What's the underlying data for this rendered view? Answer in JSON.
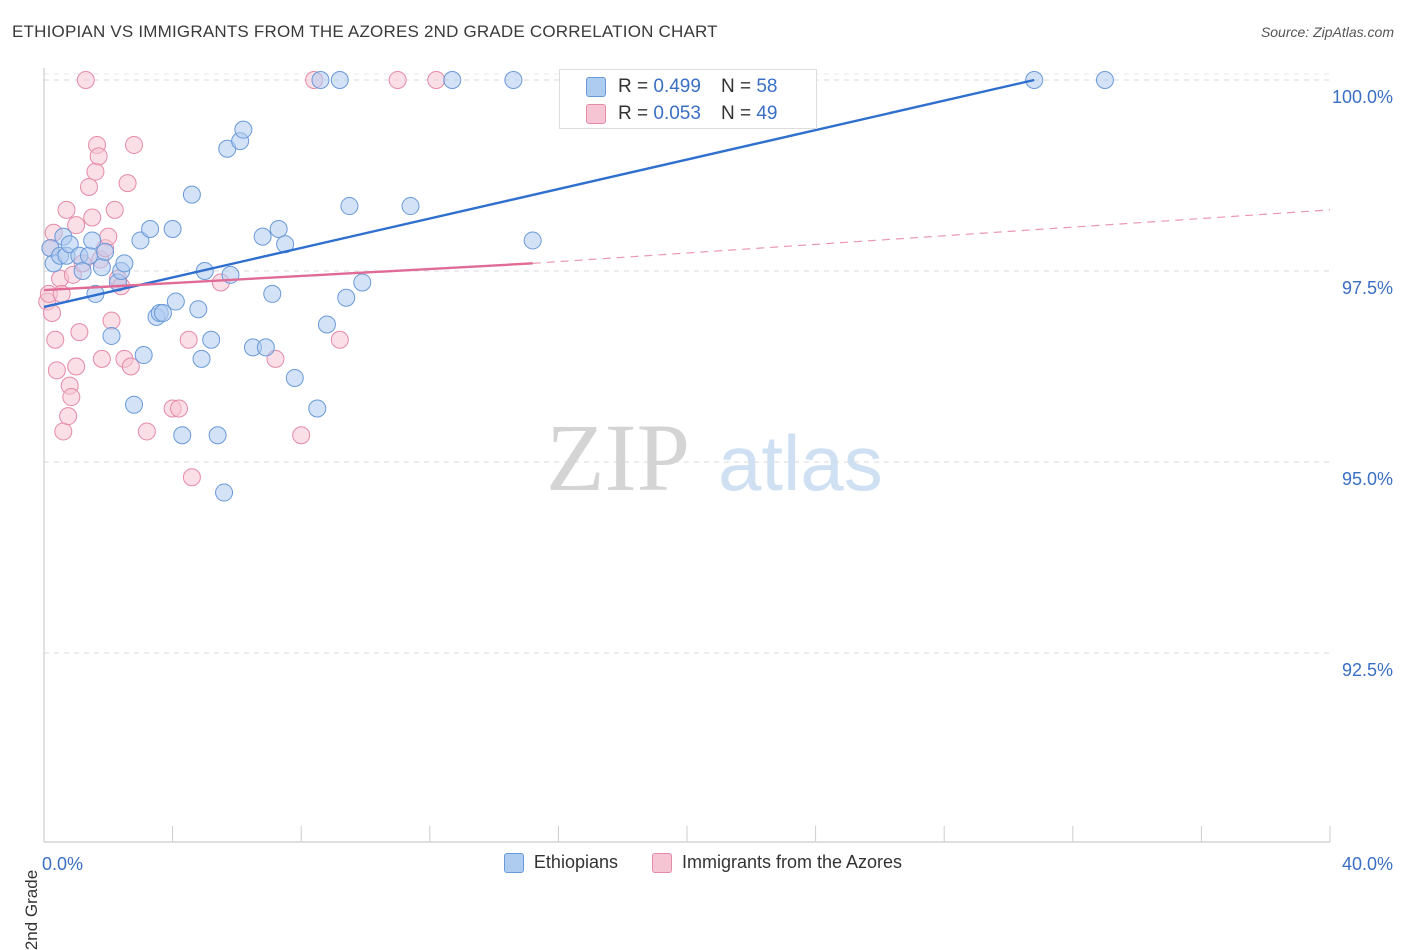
{
  "title": "ETHIOPIAN VS IMMIGRANTS FROM THE AZORES 2ND GRADE CORRELATION CHART",
  "source": "Source: ZipAtlas.com",
  "watermark": {
    "zip": "ZIP",
    "atlas": "atlas"
  },
  "legend": {
    "blue": {
      "r_label": "R =",
      "r_value": "0.499",
      "n_label": "N =",
      "n_value": "58"
    },
    "pink": {
      "r_label": "R =",
      "r_value": "0.053",
      "n_label": "N =",
      "n_value": "49"
    }
  },
  "bottom_legend": {
    "blue": "Ethiopians",
    "pink": "Immigrants from the Azores"
  },
  "colors": {
    "blue_fill": "#aecbf0",
    "blue_stroke": "#6a9ad8",
    "blue_line": "#2f6fce",
    "pink_fill": "#f6c5d4",
    "pink_stroke": "#e58aa9",
    "pink_line": "#e06b96",
    "tick_label": "#3a6fc4",
    "grid": "#d9d9d9"
  },
  "chart_data": {
    "type": "scatter",
    "title": "ETHIOPIAN VS IMMIGRANTS FROM THE AZORES 2ND GRADE CORRELATION CHART",
    "xlabel": "",
    "ylabel": "2nd Grade",
    "xlim": [
      0,
      40
    ],
    "ylim": [
      90.2,
      100.3
    ],
    "x_tick_labels": [
      {
        "value": 0,
        "label": "0.0%"
      },
      {
        "value": 40,
        "label": "40.0%"
      }
    ],
    "y_ticks": [
      {
        "value": 100,
        "label": "100.0%"
      },
      {
        "value": 97.5,
        "label": "97.5%"
      },
      {
        "value": 95,
        "label": "95.0%"
      },
      {
        "value": 92.5,
        "label": "92.5%"
      }
    ],
    "x_minor_ticks": [
      4,
      8,
      12,
      16,
      20,
      24,
      28,
      32,
      36,
      40
    ],
    "series": [
      {
        "name": "Ethiopians",
        "color": "blue",
        "trend": {
          "x": [
            0,
            30.8
          ],
          "y": [
            97.03,
            100.0
          ],
          "style": "solid"
        },
        "points": [
          [
            0.2,
            97.8
          ],
          [
            0.3,
            97.6
          ],
          [
            0.5,
            97.7
          ],
          [
            0.6,
            97.95
          ],
          [
            0.7,
            97.7
          ],
          [
            0.8,
            97.85
          ],
          [
            1.1,
            97.7
          ],
          [
            1.2,
            97.5
          ],
          [
            1.4,
            97.7
          ],
          [
            1.5,
            97.9
          ],
          [
            1.6,
            97.2
          ],
          [
            1.8,
            97.55
          ],
          [
            1.9,
            97.75
          ],
          [
            2.1,
            96.65
          ],
          [
            2.3,
            97.35
          ],
          [
            2.4,
            97.5
          ],
          [
            2.5,
            97.6
          ],
          [
            2.8,
            95.75
          ],
          [
            3.0,
            97.9
          ],
          [
            3.1,
            96.4
          ],
          [
            3.3,
            98.05
          ],
          [
            3.5,
            96.9
          ],
          [
            3.6,
            96.95
          ],
          [
            3.7,
            96.95
          ],
          [
            4.0,
            98.05
          ],
          [
            4.1,
            97.1
          ],
          [
            4.3,
            95.35
          ],
          [
            4.6,
            98.5
          ],
          [
            4.8,
            97.0
          ],
          [
            4.9,
            96.35
          ],
          [
            5.0,
            97.5
          ],
          [
            5.2,
            96.6
          ],
          [
            5.4,
            95.35
          ],
          [
            5.6,
            94.6
          ],
          [
            5.7,
            99.1
          ],
          [
            5.8,
            97.45
          ],
          [
            6.1,
            99.2
          ],
          [
            6.2,
            99.35
          ],
          [
            6.5,
            96.5
          ],
          [
            6.8,
            97.95
          ],
          [
            6.9,
            96.5
          ],
          [
            7.1,
            97.2
          ],
          [
            7.3,
            98.05
          ],
          [
            7.5,
            97.85
          ],
          [
            7.8,
            96.1
          ],
          [
            8.5,
            95.7
          ],
          [
            8.6,
            100.0
          ],
          [
            8.8,
            96.8
          ],
          [
            9.2,
            100.0
          ],
          [
            9.4,
            97.15
          ],
          [
            9.5,
            98.35
          ],
          [
            9.9,
            97.35
          ],
          [
            11.4,
            98.35
          ],
          [
            12.7,
            100.0
          ],
          [
            14.6,
            100.0
          ],
          [
            15.2,
            97.9
          ],
          [
            30.8,
            100.0
          ],
          [
            33.0,
            100.0
          ]
        ]
      },
      {
        "name": "Immigrants from the Azores",
        "color": "pink",
        "trend": {
          "x": [
            0,
            15.2
          ],
          "y": [
            97.25,
            97.6
          ],
          "style": "solid"
        },
        "trend_extension": {
          "x": [
            15.2,
            40.0
          ],
          "y": [
            97.6,
            98.3
          ],
          "style": "dashed"
        },
        "points": [
          [
            0.1,
            97.1
          ],
          [
            0.15,
            97.2
          ],
          [
            0.2,
            97.8
          ],
          [
            0.25,
            96.95
          ],
          [
            0.3,
            98.0
          ],
          [
            0.35,
            96.6
          ],
          [
            0.4,
            96.2
          ],
          [
            0.5,
            97.4
          ],
          [
            0.55,
            97.2
          ],
          [
            0.6,
            95.4
          ],
          [
            0.7,
            98.3
          ],
          [
            0.75,
            95.6
          ],
          [
            0.8,
            96.0
          ],
          [
            0.85,
            95.85
          ],
          [
            0.9,
            97.45
          ],
          [
            1.0,
            98.1
          ],
          [
            1.0,
            96.25
          ],
          [
            1.1,
            96.7
          ],
          [
            1.2,
            97.6
          ],
          [
            1.3,
            100.0
          ],
          [
            1.4,
            98.6
          ],
          [
            1.5,
            98.2
          ],
          [
            1.6,
            98.8
          ],
          [
            1.65,
            99.15
          ],
          [
            1.7,
            99.0
          ],
          [
            1.75,
            97.65
          ],
          [
            1.8,
            96.35
          ],
          [
            1.9,
            97.8
          ],
          [
            2.0,
            97.95
          ],
          [
            2.1,
            96.85
          ],
          [
            2.2,
            98.3
          ],
          [
            2.3,
            97.4
          ],
          [
            2.4,
            97.3
          ],
          [
            2.5,
            96.35
          ],
          [
            2.6,
            98.65
          ],
          [
            2.7,
            96.25
          ],
          [
            2.8,
            99.15
          ],
          [
            3.2,
            95.4
          ],
          [
            4.0,
            95.7
          ],
          [
            4.2,
            95.7
          ],
          [
            4.5,
            96.6
          ],
          [
            4.6,
            94.8
          ],
          [
            5.5,
            97.35
          ],
          [
            7.2,
            96.35
          ],
          [
            8.0,
            95.35
          ],
          [
            8.4,
            100.0
          ],
          [
            9.2,
            96.6
          ],
          [
            11.0,
            100.0
          ],
          [
            12.2,
            100.0
          ]
        ]
      }
    ]
  }
}
